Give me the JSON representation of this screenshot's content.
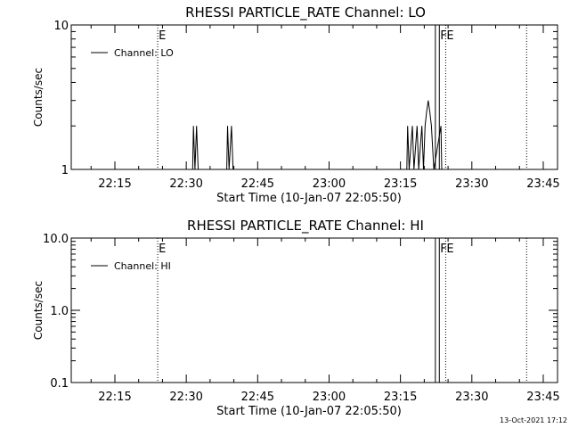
{
  "chart_data": [
    {
      "type": "line",
      "title": "RHESSI PARTICLE_RATE Channel: LO",
      "xlabel": "Start Time (10-Jan-07 22:05:50)",
      "ylabel": "Counts/sec",
      "y_scale": "log",
      "ylim": [
        1,
        10
      ],
      "y_ticks": [
        {
          "v": 1,
          "label": "1"
        },
        {
          "v": 10,
          "label": "10"
        }
      ],
      "xlim": [
        "22:05:50",
        "23:48:00"
      ],
      "x_ticks": [
        "22:15",
        "22:30",
        "22:45",
        "23:00",
        "23:15",
        "23:30",
        "23:45"
      ],
      "grid": false,
      "legend": {
        "placement": "top-left",
        "entries": [
          "Channel: LO"
        ]
      },
      "event_markers": [
        {
          "time": "22:24:00",
          "style": "dotted",
          "label": "E"
        },
        {
          "time": "23:22:20",
          "style": "solid",
          "label": ""
        },
        {
          "time": "23:23:10",
          "style": "solid",
          "label": "F"
        },
        {
          "time": "23:24:30",
          "style": "dotted",
          "label": "E"
        },
        {
          "time": "23:41:30",
          "style": "dotted",
          "label": ""
        }
      ],
      "series": [
        {
          "name": "Channel: LO",
          "points": [
            [
              "22:31:20",
              1
            ],
            [
              "22:31:30",
              2
            ],
            [
              "22:31:50",
              1
            ],
            [
              "22:32:10",
              2
            ],
            [
              "22:32:30",
              1
            ],
            [
              "22:38:30",
              1
            ],
            [
              "22:38:40",
              2
            ],
            [
              "22:39:00",
              1
            ],
            [
              "22:39:30",
              2
            ],
            [
              "22:39:50",
              1
            ],
            [
              "23:16:20",
              1
            ],
            [
              "23:16:30",
              2
            ],
            [
              "23:16:50",
              1
            ],
            [
              "23:17:30",
              2
            ],
            [
              "23:17:50",
              1
            ],
            [
              "23:18:30",
              2
            ],
            [
              "23:18:50",
              1
            ],
            [
              "23:19:30",
              2
            ],
            [
              "23:19:50",
              1
            ],
            [
              "23:20:10",
              2
            ],
            [
              "23:20:30",
              2.5
            ],
            [
              "23:20:50",
              3
            ],
            [
              "23:21:10",
              2.5
            ],
            [
              "23:21:30",
              2
            ],
            [
              "23:22:00",
              1
            ],
            [
              "23:23:30",
              2
            ],
            [
              "23:23:40",
              1
            ]
          ]
        }
      ]
    },
    {
      "type": "line",
      "title": "RHESSI PARTICLE_RATE Channel: HI",
      "xlabel": "Start Time (10-Jan-07 22:05:50)",
      "ylabel": "Counts/sec",
      "y_scale": "log",
      "ylim": [
        0.1,
        10
      ],
      "y_ticks": [
        {
          "v": 0.1,
          "label": "0.1"
        },
        {
          "v": 1,
          "label": "1.0"
        },
        {
          "v": 10,
          "label": "10.0"
        }
      ],
      "xlim": [
        "22:05:50",
        "23:48:00"
      ],
      "x_ticks": [
        "22:15",
        "22:30",
        "22:45",
        "23:00",
        "23:15",
        "23:30",
        "23:45"
      ],
      "grid": false,
      "legend": {
        "placement": "top-left",
        "entries": [
          "Channel: HI"
        ]
      },
      "event_markers": [
        {
          "time": "22:24:00",
          "style": "dotted",
          "label": "E"
        },
        {
          "time": "23:22:20",
          "style": "solid",
          "label": ""
        },
        {
          "time": "23:23:10",
          "style": "solid",
          "label": "F"
        },
        {
          "time": "23:24:30",
          "style": "dotted",
          "label": "E"
        },
        {
          "time": "23:41:30",
          "style": "dotted",
          "label": ""
        }
      ],
      "series": [
        {
          "name": "Channel: HI",
          "points": []
        }
      ]
    }
  ],
  "footer": {
    "timestamp": "13-Oct-2021 17:12"
  }
}
